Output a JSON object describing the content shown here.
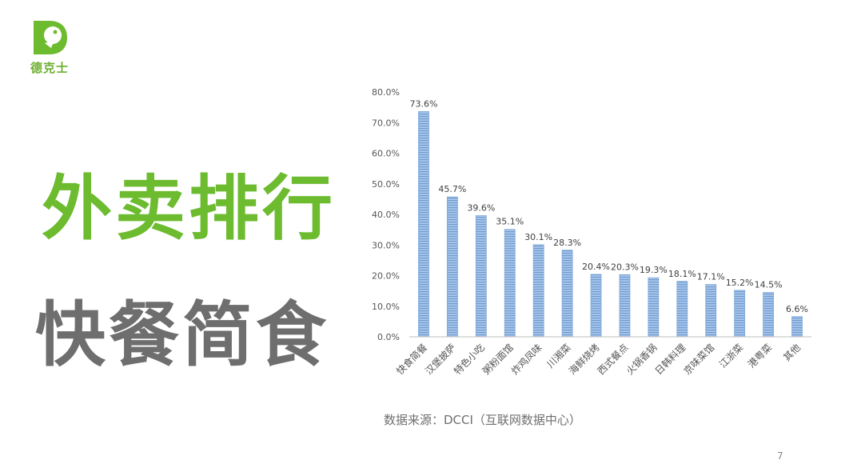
{
  "brand": {
    "name": "德克士",
    "color": "#6dae2f"
  },
  "title_line1": "外卖排行",
  "title_line2": "快餐简食",
  "source_text": "数据来源：DCCI（互联网数据中心）",
  "page_number": "7",
  "chart_data": {
    "type": "bar",
    "title": "",
    "xlabel": "",
    "ylabel": "",
    "ylim": [
      0,
      80
    ],
    "ytick_labels": [
      "0.0%",
      "10.0%",
      "20.0%",
      "30.0%",
      "40.0%",
      "50.0%",
      "60.0%",
      "70.0%",
      "80.0%"
    ],
    "categories": [
      "快食简餐",
      "汉堡披萨",
      "特色小吃",
      "粥粉面馆",
      "炸鸡凤味",
      "川湘菜",
      "海鲜烧烤",
      "西式餐点",
      "火锅香锅",
      "日韩料理",
      "京味菜馆",
      "江浙菜",
      "港粤菜",
      "其他"
    ],
    "values": [
      73.6,
      45.7,
      39.6,
      35.1,
      30.1,
      28.3,
      20.4,
      20.3,
      19.3,
      18.1,
      17.1,
      15.2,
      14.5,
      6.6
    ],
    "value_labels": [
      "73.6%",
      "45.7%",
      "39.6%",
      "35.1%",
      "30.1%",
      "28.3%",
      "20.4%",
      "20.3%",
      "19.3%",
      "18.1%",
      "17.1%",
      "15.2%",
      "14.5%",
      "6.6%"
    ],
    "bar_color": "#7ea8d8",
    "grid": false
  }
}
